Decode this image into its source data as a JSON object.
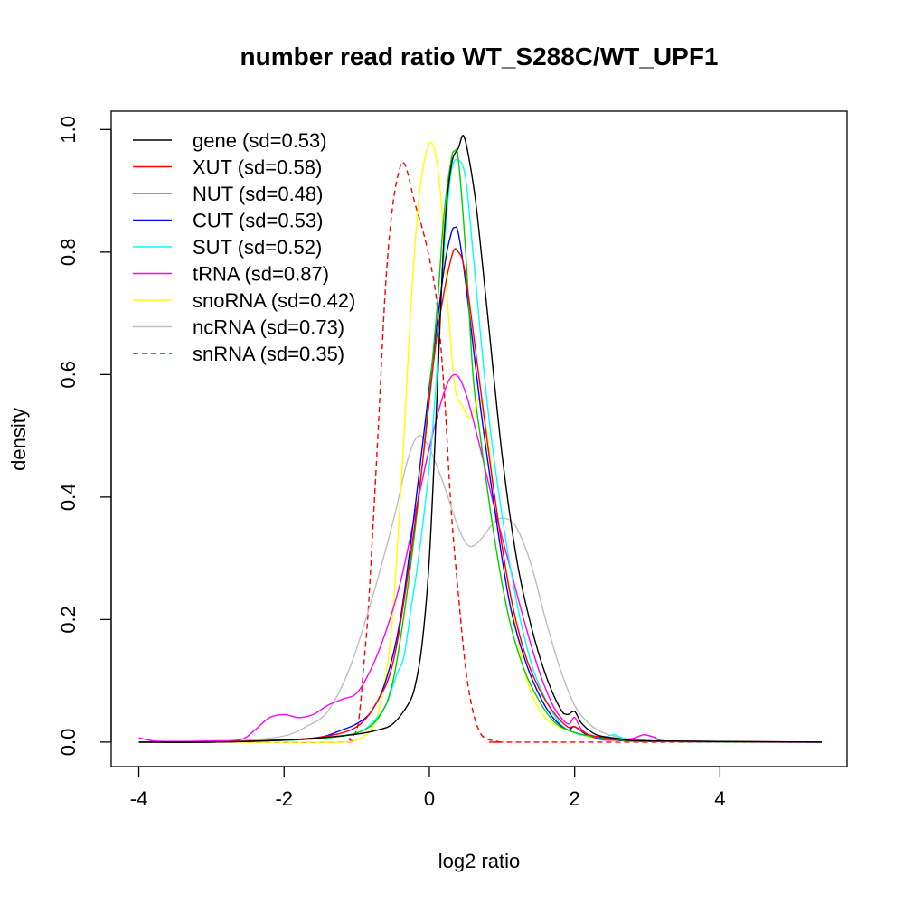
{
  "chart_data": {
    "type": "line",
    "title": "number read ratio WT_S288C/WT_UPF1",
    "xlabel": "log2 ratio",
    "ylabel": "density",
    "xlim": [
      -4.38,
      5.75
    ],
    "ylim": [
      -0.04,
      1.03
    ],
    "xticks": [
      -4,
      -2,
      0,
      2,
      4
    ],
    "yticks": [
      0.0,
      0.2,
      0.4,
      0.6,
      0.8,
      1.0
    ],
    "xtick_labels": [
      "-4",
      "-2",
      "0",
      "2",
      "4"
    ],
    "ytick_labels": [
      "0.0",
      "0.2",
      "0.4",
      "0.6",
      "0.8",
      "1.0"
    ],
    "grid": false,
    "legend_position": "top-left",
    "series": [
      {
        "name": "gene (sd=0.53)",
        "color": "#000000",
        "dash": false,
        "x": [
          -4.0,
          -3.0,
          -2.0,
          -1.5,
          -1.0,
          -0.7,
          -0.5,
          -0.3,
          -0.2,
          -0.1,
          0.0,
          0.1,
          0.2,
          0.3,
          0.4,
          0.47,
          0.55,
          0.65,
          0.8,
          1.0,
          1.2,
          1.4,
          1.6,
          1.8,
          1.9,
          2.0,
          2.1,
          2.3,
          2.6,
          3.0,
          5.4
        ],
        "y": [
          0.0,
          0.0,
          0.003,
          0.007,
          0.013,
          0.02,
          0.03,
          0.06,
          0.09,
          0.16,
          0.3,
          0.55,
          0.82,
          0.94,
          0.97,
          0.99,
          0.95,
          0.87,
          0.7,
          0.47,
          0.3,
          0.19,
          0.11,
          0.055,
          0.045,
          0.05,
          0.03,
          0.012,
          0.006,
          0.002,
          0.0
        ]
      },
      {
        "name": "XUT (sd=0.58)",
        "color": "#ff0000",
        "dash": false,
        "x": [
          -4.0,
          -3.0,
          -2.0,
          -1.5,
          -1.0,
          -0.7,
          -0.5,
          -0.3,
          -0.1,
          0.1,
          0.3,
          0.4,
          0.5,
          0.7,
          0.9,
          1.1,
          1.3,
          1.5,
          1.7,
          1.9,
          2.0,
          2.2,
          2.5,
          3.0,
          5.4
        ],
        "y": [
          0.0,
          0.0,
          0.004,
          0.008,
          0.025,
          0.07,
          0.13,
          0.27,
          0.45,
          0.66,
          0.79,
          0.8,
          0.76,
          0.58,
          0.4,
          0.25,
          0.15,
          0.09,
          0.05,
          0.025,
          0.025,
          0.012,
          0.006,
          0.002,
          0.0
        ]
      },
      {
        "name": "NUT (sd=0.48)",
        "color": "#00cd00",
        "dash": false,
        "x": [
          -4.0,
          -3.0,
          -2.0,
          -1.5,
          -1.0,
          -0.7,
          -0.5,
          -0.3,
          -0.1,
          0.1,
          0.2,
          0.3,
          0.35,
          0.4,
          0.5,
          0.6,
          0.7,
          0.9,
          1.1,
          1.3,
          1.5,
          1.7,
          1.9,
          2.2,
          2.6,
          3.0,
          5.4
        ],
        "y": [
          0.0,
          0.0,
          0.003,
          0.006,
          0.015,
          0.04,
          0.1,
          0.25,
          0.45,
          0.7,
          0.86,
          0.95,
          0.965,
          0.95,
          0.8,
          0.6,
          0.5,
          0.33,
          0.2,
          0.12,
          0.07,
          0.035,
          0.02,
          0.01,
          0.004,
          0.001,
          0.0
        ]
      },
      {
        "name": "CUT (sd=0.53)",
        "color": "#0000ff",
        "dash": false,
        "x": [
          -4.0,
          -3.0,
          -2.0,
          -1.5,
          -1.2,
          -1.0,
          -0.8,
          -0.6,
          -0.4,
          -0.2,
          0.0,
          0.2,
          0.3,
          0.35,
          0.4,
          0.5,
          0.7,
          0.9,
          1.1,
          1.3,
          1.5,
          1.7,
          1.9,
          2.0,
          2.2,
          2.5,
          3.0,
          5.4
        ],
        "y": [
          0.0,
          0.0,
          0.003,
          0.008,
          0.02,
          0.03,
          0.05,
          0.1,
          0.2,
          0.38,
          0.58,
          0.77,
          0.83,
          0.84,
          0.83,
          0.75,
          0.55,
          0.38,
          0.23,
          0.14,
          0.08,
          0.04,
          0.02,
          0.025,
          0.01,
          0.005,
          0.001,
          0.0
        ]
      },
      {
        "name": "SUT (sd=0.52)",
        "color": "#00ffff",
        "dash": false,
        "x": [
          -4.0,
          -3.0,
          -2.0,
          -1.5,
          -1.0,
          -0.8,
          -0.6,
          -0.45,
          -0.35,
          -0.25,
          -0.15,
          0.0,
          0.1,
          0.2,
          0.3,
          0.4,
          0.5,
          0.6,
          0.8,
          1.0,
          1.2,
          1.4,
          1.6,
          1.8,
          2.0,
          2.2,
          2.4,
          2.55,
          2.7,
          3.0,
          5.4
        ],
        "y": [
          0.0,
          0.0,
          0.003,
          0.006,
          0.015,
          0.03,
          0.06,
          0.11,
          0.14,
          0.22,
          0.3,
          0.45,
          0.6,
          0.8,
          0.93,
          0.95,
          0.92,
          0.8,
          0.55,
          0.37,
          0.23,
          0.13,
          0.07,
          0.03,
          0.015,
          0.01,
          0.008,
          0.012,
          0.005,
          0.002,
          0.0
        ]
      },
      {
        "name": "tRNA (sd=0.87)",
        "color": "#ff00ff",
        "dash": false,
        "x": [
          -4.0,
          -3.8,
          -3.5,
          -3.0,
          -2.6,
          -2.4,
          -2.2,
          -2.0,
          -1.8,
          -1.6,
          -1.4,
          -1.2,
          -1.0,
          -0.8,
          -0.6,
          -0.4,
          -0.2,
          0.0,
          0.2,
          0.35,
          0.5,
          0.7,
          0.9,
          1.1,
          1.3,
          1.5,
          1.7,
          1.9,
          2.0,
          2.1,
          2.3,
          2.5,
          2.8,
          2.95,
          3.1,
          3.4,
          5.4
        ],
        "y": [
          0.007,
          0.002,
          0.001,
          0.002,
          0.004,
          0.02,
          0.04,
          0.045,
          0.04,
          0.045,
          0.06,
          0.07,
          0.08,
          0.12,
          0.18,
          0.26,
          0.37,
          0.48,
          0.57,
          0.6,
          0.57,
          0.48,
          0.38,
          0.29,
          0.2,
          0.12,
          0.06,
          0.03,
          0.04,
          0.02,
          0.006,
          0.003,
          0.006,
          0.012,
          0.008,
          0.001,
          0.0
        ]
      },
      {
        "name": "snoRNA (sd=0.42)",
        "color": "#ffff00",
        "dash": false,
        "x": [
          -4.0,
          -3.0,
          -2.0,
          -1.2,
          -1.0,
          -0.9,
          -0.8,
          -0.7,
          -0.55,
          -0.45,
          -0.35,
          -0.25,
          -0.15,
          -0.05,
          0.05,
          0.15,
          0.25,
          0.35,
          0.45,
          0.55,
          0.65,
          0.7,
          0.8,
          0.9,
          1.1,
          1.3,
          1.5,
          1.7,
          1.9,
          2.1,
          2.4,
          3.0,
          5.4
        ],
        "y": [
          0.0,
          0.0,
          0.0,
          0.0,
          0.003,
          0.01,
          0.02,
          0.05,
          0.15,
          0.3,
          0.5,
          0.72,
          0.88,
          0.96,
          0.975,
          0.9,
          0.72,
          0.58,
          0.55,
          0.53,
          0.55,
          0.56,
          0.5,
          0.4,
          0.25,
          0.12,
          0.055,
          0.03,
          0.02,
          0.012,
          0.004,
          0.001,
          0.0
        ]
      },
      {
        "name": "ncRNA (sd=0.73)",
        "color": "#bebebe",
        "dash": false,
        "x": [
          -4.0,
          -3.0,
          -2.5,
          -2.0,
          -1.7,
          -1.4,
          -1.1,
          -0.8,
          -0.5,
          -0.3,
          -0.15,
          0.0,
          0.2,
          0.4,
          0.55,
          0.7,
          0.9,
          1.05,
          1.2,
          1.4,
          1.6,
          1.8,
          2.0,
          2.2,
          2.4,
          2.7,
          3.0,
          3.3,
          5.4
        ],
        "y": [
          0.0,
          0.0,
          0.003,
          0.01,
          0.025,
          0.05,
          0.12,
          0.23,
          0.36,
          0.46,
          0.5,
          0.48,
          0.42,
          0.35,
          0.32,
          0.33,
          0.36,
          0.365,
          0.35,
          0.29,
          0.2,
          0.12,
          0.06,
          0.03,
          0.015,
          0.006,
          0.003,
          0.001,
          0.0
        ]
      },
      {
        "name": "snRNA (sd=0.35)",
        "color": "#ff0000",
        "dash": true,
        "x": [
          -4.0,
          -3.0,
          -1.2,
          -1.1,
          -1.0,
          -0.95,
          -0.9,
          -0.85,
          -0.8,
          -0.7,
          -0.6,
          -0.5,
          -0.4,
          -0.35,
          -0.3,
          -0.2,
          -0.1,
          0.0,
          0.1,
          0.2,
          0.3,
          0.4,
          0.5,
          0.6,
          0.7,
          0.8,
          0.9,
          1.0,
          1.2,
          5.4
        ],
        "y": [
          0.0,
          0.0,
          0.0,
          0.005,
          0.02,
          0.06,
          0.13,
          0.2,
          0.3,
          0.52,
          0.75,
          0.88,
          0.94,
          0.945,
          0.93,
          0.88,
          0.84,
          0.79,
          0.72,
          0.58,
          0.38,
          0.24,
          0.12,
          0.05,
          0.015,
          0.005,
          0.002,
          0.0,
          0.0,
          0.0
        ]
      }
    ]
  }
}
